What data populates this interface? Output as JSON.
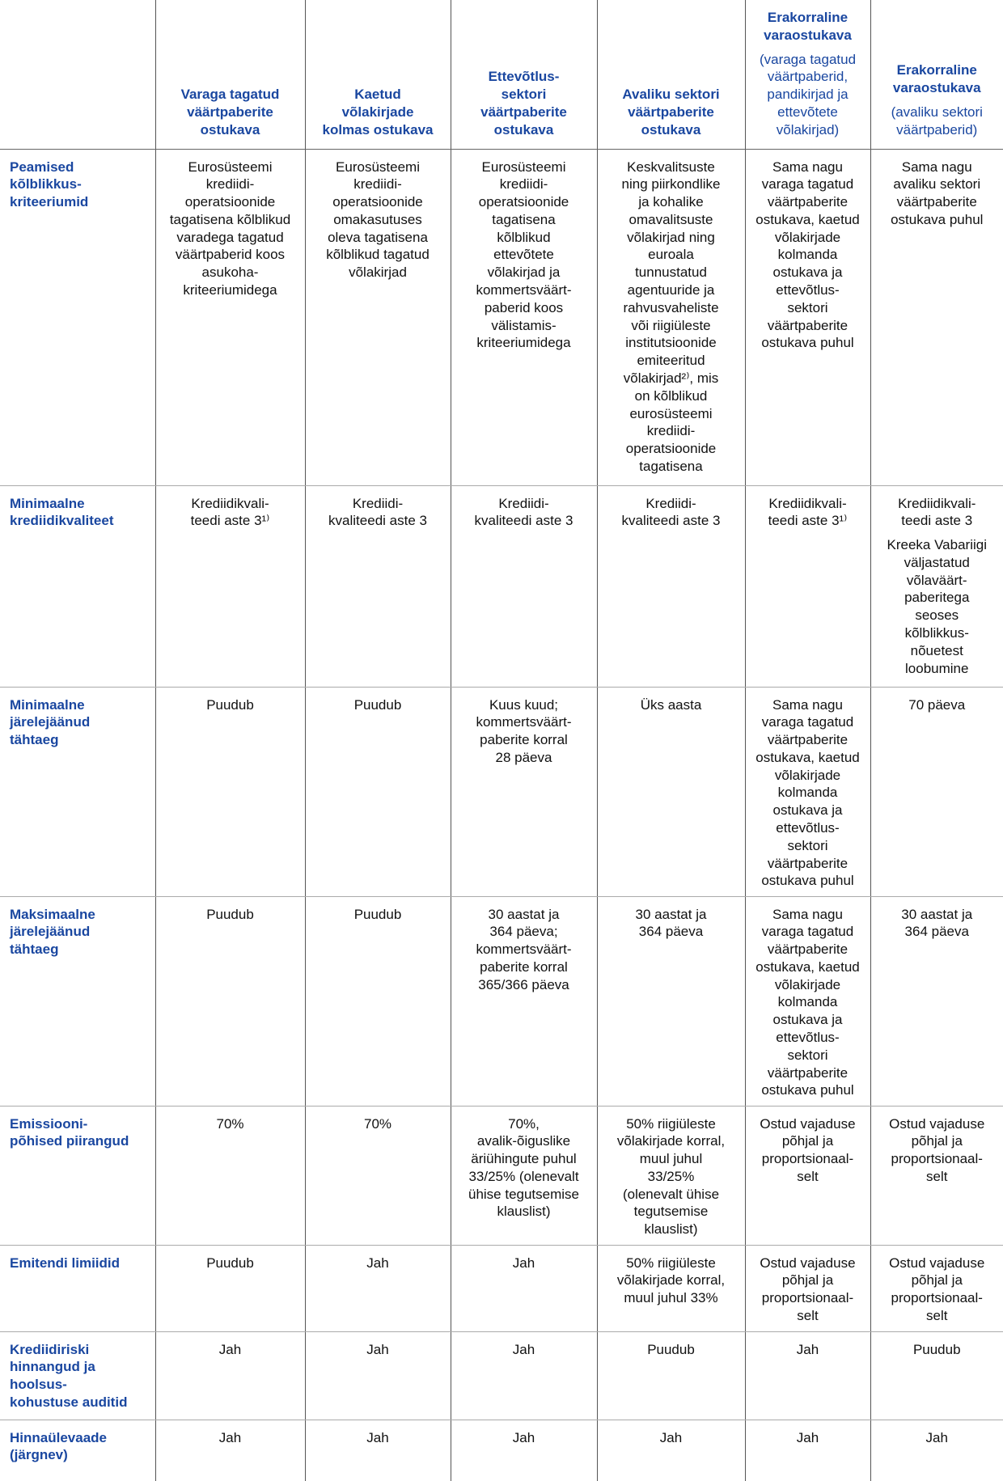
{
  "table": {
    "columns": [
      {
        "title": "Varaga tagatud\nväärtpaberite\nostukava"
      },
      {
        "title": "Kaetud\nvõlakirjade\nkolmas ostukava"
      },
      {
        "title": "Ettevõtlus-\nsektori\nväärtpaberite\nostukava"
      },
      {
        "title": "Avaliku sektori\nväärtpaberite\nostukava"
      },
      {
        "title": "Erakorraline\nvaraostukava",
        "note": "(varaga tagatud\nväärtpaberid,\npandikirjad ja\nettevõtete\nvõlakirjad)"
      },
      {
        "title": "Erakorraline\nvaraostukava",
        "note": "(avaliku sektori\nväärtpaberid)"
      }
    ],
    "rows": [
      {
        "label": "Peamised\nkõlblikkus-\nkriteeriumid",
        "cells": [
          [
            "Eurosüsteemi\nkrediidi-\noperatsioonide\ntagatisena kõlblikud\nvaradega tagatud\nväärtpaberid koos\nasukoha-\nkriteeriumidega"
          ],
          [
            "Eurosüsteemi\nkrediidi-\noperatsioonide\nomakasutuses\noleva tagatisena\nkõlblikud tagatud\nvõlakirjad"
          ],
          [
            "Eurosüsteemi\nkrediidi-\noperatsioonide\ntagatisena\nkõlblikud\nettevõtete\nvõlakirjad ja\nkommertsväärt-\npaberid koos\nvälistamis-\nkriteeriumidega"
          ],
          [
            "Keskvalitsuste\nning piirkondlike\nja kohalike\nomavalitsuste\nvõlakirjad ning\neuroala\ntunnustatud\nagentuuride ja\nrahvusvaheliste\nvõi riigiüleste\ninstitutsioonide\nemiteeritud\nvõlakirjad²⁾, mis\non kõlblikud\neurosüsteemi\nkrediidi-\noperatsioonide\ntagatisena"
          ],
          [
            "Sama nagu\nvaraga tagatud\nväärtpaberite\nostukava, kaetud\nvõlakirjade\nkolmanda\nostukava ja\nettevõtlus-\nsektori\nväärtpaberite\nostukava puhul"
          ],
          [
            "Sama nagu\navaliku sektori\nväärtpaberite\nostukava puhul"
          ]
        ]
      },
      {
        "label": "Minimaalne\nkrediidikvaliteet",
        "cells": [
          [
            "Krediidikvali-\nteedi aste 3¹⁾"
          ],
          [
            "Krediidi-\nkvaliteedi aste 3"
          ],
          [
            "Krediidi-\nkvaliteedi aste 3"
          ],
          [
            "Krediidi-\nkvaliteedi aste 3"
          ],
          [
            "Krediidikvali-\nteedi aste 3¹⁾"
          ],
          [
            "Krediidikvali-\nteedi aste 3",
            "Kreeka Vabariigi\nväljastatud\nvõlaväärt-\npaberitega\nseoses\nkõlblikkus-\nnõuetest\nloobumine"
          ]
        ]
      },
      {
        "label": "Minimaalne\njärelejäänud\ntähtaeg",
        "cells": [
          [
            "Puudub"
          ],
          [
            "Puudub"
          ],
          [
            "Kuus kuud;\nkommertsväärt-\npaberite korral\n28 päeva"
          ],
          [
            "Üks aasta"
          ],
          [
            "Sama nagu\nvaraga tagatud\nväärtpaberite\nostukava, kaetud\nvõlakirjade\nkolmanda\nostukava ja\nettevõtlus-\nsektori\nväärtpaberite\nostukava puhul"
          ],
          [
            "70 päeva"
          ]
        ]
      },
      {
        "label": "Maksimaalne\njärelejäänud\ntähtaeg",
        "cells": [
          [
            "Puudub"
          ],
          [
            "Puudub"
          ],
          [
            "30 aastat ja\n364 päeva;\nkommertsväärt-\npaberite korral\n365/366 päeva"
          ],
          [
            "30 aastat ja\n364 päeva"
          ],
          [
            "Sama nagu\nvaraga tagatud\nväärtpaberite\nostukava, kaetud\nvõlakirjade\nkolmanda\nostukava ja\nettevõtlus-\nsektori\nväärtpaberite\nostukava puhul"
          ],
          [
            "30 aastat ja\n364 päeva"
          ]
        ]
      },
      {
        "label": "Emissiooni-\npõhised piirangud",
        "cells": [
          [
            "70%"
          ],
          [
            "70%"
          ],
          [
            "70%,\navalik-õiguslike\näriühingute puhul\n33/25% (olenevalt\nühise tegutsemise\nklauslist)"
          ],
          [
            "50% riigiüleste\nvõlakirjade korral,\nmuul juhul\n33/25%\n(olenevalt ühise\ntegutsemise\nklauslist)"
          ],
          [
            "Ostud vajaduse\npõhjal ja\nproportsionaal-\nselt"
          ],
          [
            "Ostud vajaduse\npõhjal ja\nproportsionaal-\nselt"
          ]
        ]
      },
      {
        "label": "Emitendi limiidid",
        "cells": [
          [
            "Puudub"
          ],
          [
            "Jah"
          ],
          [
            "Jah"
          ],
          [
            "50% riigiüleste\nvõlakirjade korral,\nmuul juhul 33%"
          ],
          [
            "Ostud vajaduse\npõhjal ja\nproportsionaal-\nselt"
          ],
          [
            "Ostud vajaduse\npõhjal ja\nproportsionaal-\nselt"
          ]
        ]
      },
      {
        "label": "Krediidiriski\nhinnangud ja\nhoolsus-\nkohustuse auditid",
        "cells": [
          [
            "Jah"
          ],
          [
            "Jah"
          ],
          [
            "Jah"
          ],
          [
            "Puudub"
          ],
          [
            "Jah"
          ],
          [
            "Puudub"
          ]
        ]
      },
      {
        "label": "Hinnaülevaade\n(järgnev)",
        "cells": [
          [
            "Jah"
          ],
          [
            "Jah"
          ],
          [
            "Jah"
          ],
          [
            "Jah"
          ],
          [
            "Jah"
          ],
          [
            "Jah"
          ]
        ]
      }
    ]
  }
}
